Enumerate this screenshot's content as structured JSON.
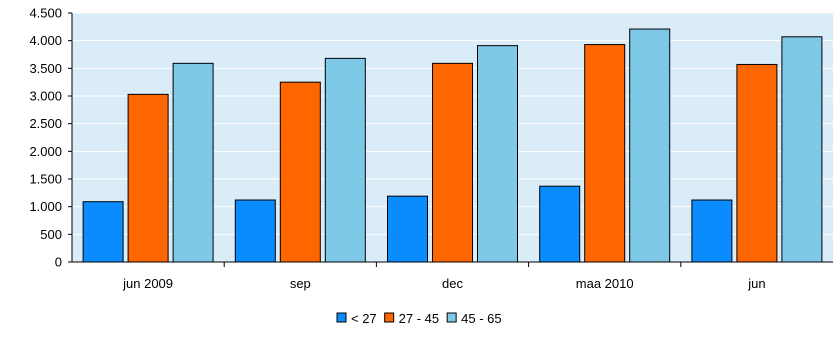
{
  "chart_data": {
    "type": "bar",
    "categories": [
      "jun 2009",
      "sep",
      "dec",
      "maa 2010",
      "jun"
    ],
    "series": [
      {
        "name": "< 27",
        "color": "#0a8cff",
        "values": [
          1090,
          1120,
          1190,
          1370,
          1120
        ]
      },
      {
        "name": "27 - 45",
        "color": "#ff6600",
        "values": [
          3030,
          3250,
          3590,
          3930,
          3570
        ]
      },
      {
        "name": "45 - 65",
        "color": "#7ec8e8",
        "values": [
          3590,
          3680,
          3910,
          4210,
          4070
        ]
      }
    ],
    "ylim": [
      0,
      4500
    ],
    "yticks": [
      0,
      500,
      1000,
      1500,
      2000,
      2500,
      3000,
      3500,
      4000,
      4500
    ],
    "ytick_labels": [
      "0",
      "500",
      "1.000",
      "1.500",
      "2.000",
      "2.500",
      "3.000",
      "3.500",
      "4.000",
      "4.500"
    ],
    "title": "",
    "xlabel": "",
    "ylabel": "",
    "grid": true,
    "legend_position": "bottom",
    "plot_background": "#d9ecf7"
  }
}
